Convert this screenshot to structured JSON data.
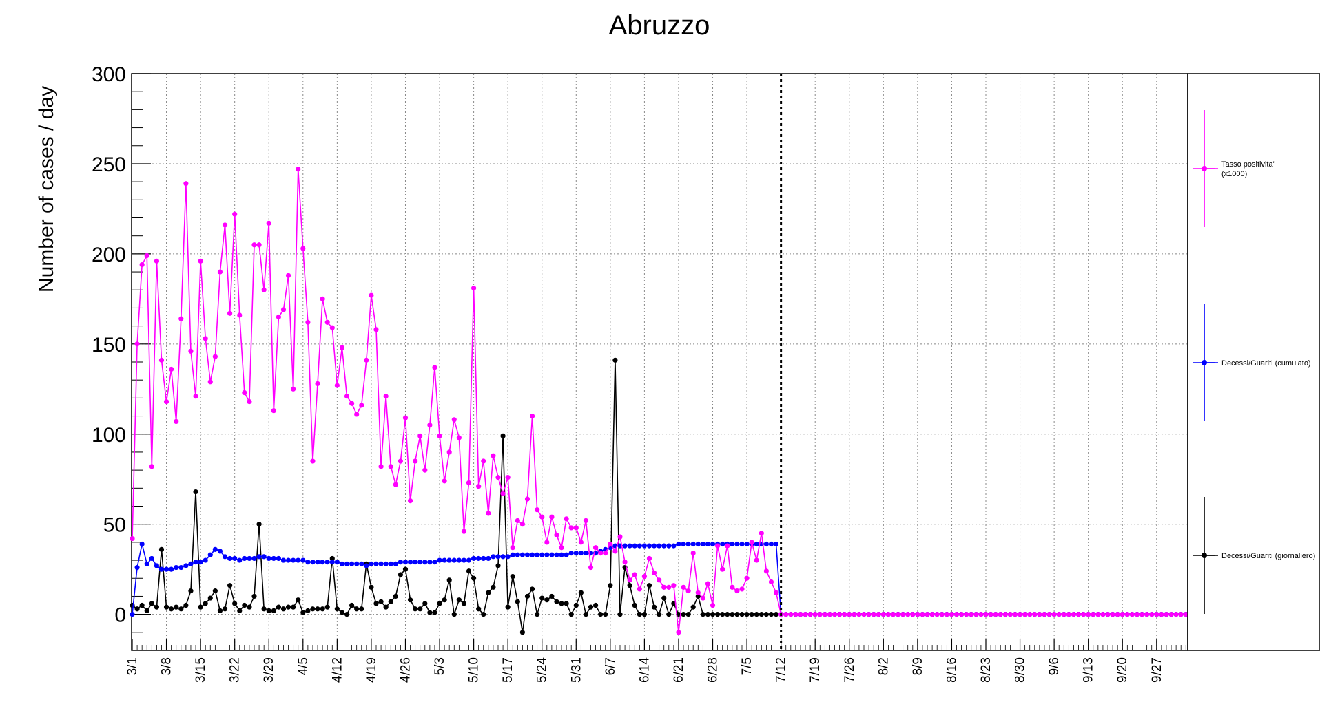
{
  "chart_data": {
    "type": "line",
    "title": "Abruzzo",
    "ylabel": "Number of cases / day",
    "xlabel": "",
    "ylim": [
      -20,
      300
    ],
    "yticks": [
      0,
      50,
      100,
      150,
      200,
      250,
      300
    ],
    "x_start_date": "3/1",
    "x_day_count": 217,
    "xtick_labels": [
      "3/1",
      "3/8",
      "3/15",
      "3/22",
      "3/29",
      "4/5",
      "4/12",
      "4/19",
      "4/26",
      "5/3",
      "5/10",
      "5/17",
      "5/24",
      "5/31",
      "6/7",
      "6/14",
      "6/21",
      "6/28",
      "7/5",
      "7/12",
      "7/19",
      "7/26",
      "8/2",
      "8/9",
      "8/16",
      "8/23",
      "8/30",
      "9/6",
      "9/13",
      "9/20",
      "9/27"
    ],
    "vertical_marker": "7/12",
    "grid": true,
    "legend_position": "right",
    "series": [
      {
        "name": "Tasso positivita' (x1000)",
        "legend_lines": [
          "Tasso positivita'",
          "(x1000)"
        ],
        "color": "#ff00ff",
        "values": [
          42,
          150,
          194,
          199,
          82,
          196,
          141,
          118,
          136,
          107,
          164,
          239,
          146,
          121,
          196,
          153,
          129,
          143,
          190,
          216,
          167,
          222,
          166,
          123,
          118,
          205,
          205,
          180,
          217,
          113,
          165,
          169,
          188,
          125,
          247,
          203,
          162,
          85,
          128,
          175,
          162,
          159,
          127,
          148,
          121,
          117,
          111,
          116,
          141,
          177,
          158,
          82,
          121,
          82,
          72,
          85,
          109,
          63,
          85,
          99,
          80,
          105,
          137,
          99,
          74,
          90,
          108,
          98,
          46,
          73,
          181,
          71,
          85,
          56,
          88,
          76,
          67,
          76,
          37,
          52,
          50,
          64,
          110,
          58,
          54,
          40,
          54,
          44,
          37,
          53,
          48,
          48,
          40,
          52,
          26,
          37,
          34,
          34,
          39,
          35,
          43,
          29,
          19,
          22,
          14,
          21,
          31,
          23,
          19,
          15,
          15,
          16,
          -10,
          15,
          13,
          34,
          12,
          9,
          17,
          5,
          38,
          25,
          38,
          15,
          13,
          14,
          20,
          40,
          30,
          45,
          24,
          18,
          12,
          0,
          0,
          0,
          0,
          0,
          0,
          0,
          0,
          0,
          0,
          0,
          0,
          0,
          0,
          0,
          0,
          0,
          0,
          0,
          0,
          0,
          0,
          0,
          0,
          0,
          0,
          0,
          0,
          0,
          0,
          0,
          0,
          0,
          0,
          0,
          0,
          0,
          0,
          0,
          0,
          0,
          0,
          0,
          0,
          0,
          0,
          0,
          0,
          0,
          0,
          0,
          0,
          0,
          0,
          0,
          0,
          0,
          0,
          0,
          0,
          0,
          0,
          0,
          0,
          0,
          0,
          0,
          0,
          0,
          0,
          0,
          0,
          0,
          0,
          0,
          0,
          0,
          0,
          0,
          0,
          0,
          0,
          0,
          0,
          0,
          0,
          0,
          0,
          0
        ]
      },
      {
        "name": "Decessi/Guariti (cumulato)",
        "legend_lines": [
          "Decessi/Guariti (cumulato)"
        ],
        "color": "#0000ff",
        "values": [
          0,
          26,
          39,
          28,
          31,
          27,
          25,
          25,
          25,
          26,
          26,
          27,
          28,
          29,
          29,
          30,
          33,
          36,
          35,
          32,
          31,
          31,
          30,
          31,
          31,
          31,
          32,
          32,
          31,
          31,
          31,
          30,
          30,
          30,
          30,
          30,
          29,
          29,
          29,
          29,
          29,
          29,
          29,
          28,
          28,
          28,
          28,
          28,
          27,
          28,
          28,
          28,
          28,
          28,
          28,
          29,
          29,
          29,
          29,
          29,
          29,
          29,
          29,
          30,
          30,
          30,
          30,
          30,
          30,
          30,
          31,
          31,
          31,
          31,
          32,
          32,
          32,
          32,
          33,
          33,
          33,
          33,
          33,
          33,
          33,
          33,
          33,
          33,
          33,
          33,
          34,
          34,
          34,
          34,
          34,
          34,
          35,
          36,
          37,
          38,
          38,
          38,
          38,
          38,
          38,
          38,
          38,
          38,
          38,
          38,
          38,
          38,
          39,
          39,
          39,
          39,
          39,
          39,
          39,
          39,
          39,
          39,
          39,
          39,
          39,
          39,
          39,
          39,
          39,
          39,
          39,
          39,
          39,
          0,
          0,
          0,
          0,
          0,
          0,
          0,
          0,
          0,
          0,
          0,
          0,
          0,
          0,
          0,
          0,
          0,
          0,
          0,
          0,
          0,
          0,
          0,
          0,
          0,
          0,
          0,
          0,
          0,
          0,
          0,
          0,
          0,
          0,
          0,
          0,
          0,
          0,
          0,
          0,
          0,
          0,
          0,
          0,
          0,
          0,
          0,
          0,
          0,
          0,
          0,
          0,
          0,
          0,
          0,
          0,
          0,
          0,
          0,
          0,
          0,
          0,
          0,
          0,
          0,
          0,
          0,
          0,
          0,
          0,
          0,
          0,
          0,
          0,
          0,
          0,
          0,
          0,
          0,
          0,
          0,
          0,
          0,
          0,
          0,
          0,
          0,
          0
        ]
      },
      {
        "name": "Decessi/Guariti (giornaliero)",
        "legend_lines": [
          "Decessi/Guariti (giornaliero)"
        ],
        "color": "#000000",
        "values": [
          5,
          3,
          5,
          2,
          6,
          4,
          36,
          4,
          3,
          4,
          3,
          5,
          13,
          68,
          4,
          6,
          9,
          13,
          2,
          3,
          16,
          6,
          2,
          5,
          4,
          10,
          50,
          3,
          2,
          2,
          4,
          3,
          4,
          4,
          8,
          1,
          2,
          3,
          3,
          3,
          4,
          31,
          3,
          1,
          0,
          5,
          3,
          3,
          28,
          15,
          6,
          7,
          4,
          7,
          10,
          22,
          25,
          8,
          3,
          3,
          6,
          1,
          1,
          6,
          8,
          19,
          0,
          8,
          6,
          24,
          20,
          3,
          0,
          12,
          15,
          27,
          99,
          4,
          21,
          7,
          -10,
          10,
          14,
          0,
          9,
          8,
          10,
          7,
          6,
          6,
          0,
          5,
          12,
          0,
          4,
          5,
          0,
          0,
          16,
          141,
          0,
          26,
          16,
          5,
          0,
          0,
          16,
          4,
          0,
          9,
          0,
          6,
          0,
          0,
          0,
          4,
          10,
          0,
          0,
          0,
          0,
          0,
          0,
          0,
          0,
          0,
          0,
          0,
          0,
          0,
          0,
          0,
          0,
          0,
          0,
          0,
          0,
          0,
          0,
          0,
          0,
          0,
          0,
          0,
          0,
          0,
          0,
          0,
          0,
          0,
          0,
          0,
          0,
          0,
          0,
          0,
          0,
          0,
          0,
          0,
          0,
          0,
          0,
          0,
          0,
          0,
          0,
          0,
          0,
          0,
          0,
          0,
          0,
          0,
          0,
          0,
          0,
          0,
          0,
          0,
          0,
          0,
          0,
          0,
          0,
          0,
          0,
          0,
          0,
          0,
          0,
          0,
          0,
          0,
          0,
          0,
          0,
          0,
          0,
          0,
          0,
          0,
          0,
          0,
          0,
          0,
          0,
          0,
          0,
          0,
          0,
          0,
          0,
          0,
          0,
          0,
          0,
          0,
          0,
          0,
          0
        ]
      }
    ]
  }
}
